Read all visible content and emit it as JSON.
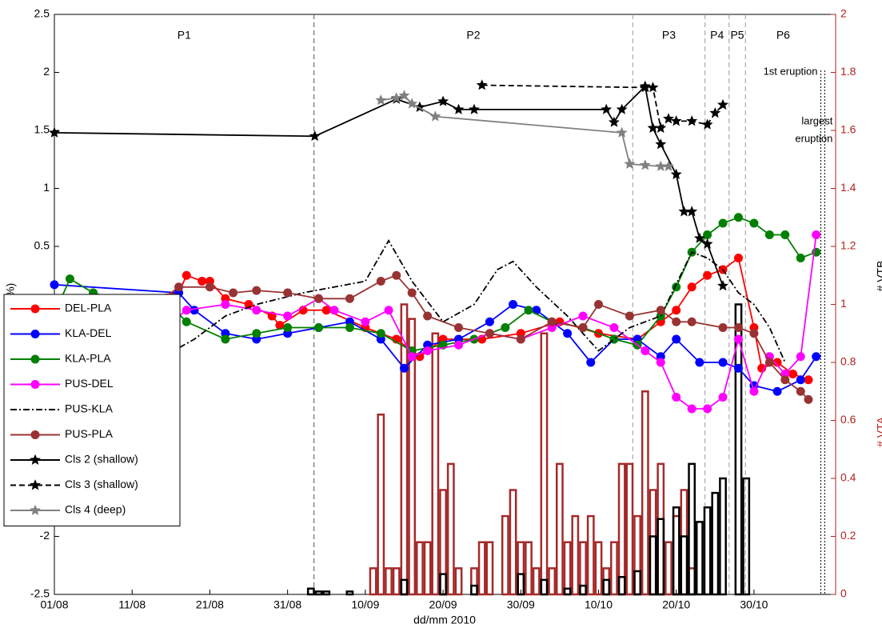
{
  "chart_data": {
    "type": "line",
    "xlabel": "dd/mm     2010",
    "ylabel": "AVV (%)",
    "y2labels": [
      {
        "text": "# VTA",
        "color": "#b22222"
      },
      {
        "text": "# VTB",
        "color": "#000000"
      }
    ],
    "xlim": [
      0,
      100.5
    ],
    "xticks": [
      {
        "value": 0,
        "label": "01/08"
      },
      {
        "value": 10,
        "label": "11/08"
      },
      {
        "value": 20,
        "label": "21/08"
      },
      {
        "value": 30,
        "label": "31/08"
      },
      {
        "value": 40,
        "label": "10/09"
      },
      {
        "value": 50,
        "label": "20/09"
      },
      {
        "value": 60,
        "label": "30/09"
      },
      {
        "value": 70,
        "label": "10/10"
      },
      {
        "value": 80,
        "label": "20/10"
      },
      {
        "value": 90,
        "label": "30/10"
      }
    ],
    "ylim": [
      -2.5,
      2.5
    ],
    "yticks": [
      -2.5,
      -2,
      -1.5,
      -1,
      -0.5,
      0,
      0.5,
      1,
      1.5,
      2,
      2.5
    ],
    "y2lim": [
      0,
      2
    ],
    "y2ticks": [
      0,
      0.2,
      0.4,
      0.6,
      0.8,
      1,
      1.2,
      1.4,
      1.6,
      1.8,
      2
    ],
    "y2color": "#b22222",
    "boundaries": [
      33.4,
      74.4,
      83.7,
      86.8,
      88.9
    ],
    "periods": [
      "P1",
      "P2",
      "P3",
      "P4",
      "P5",
      "P6"
    ],
    "eruptions": [
      {
        "label": [
          "1st eruption"
        ],
        "x": 98.6
      },
      {
        "label": [
          "largest",
          "eruption"
        ],
        "x": 99.1
      }
    ],
    "series": [
      {
        "name": "DEL-PLA",
        "type": "line",
        "color": "#ff0000",
        "marker": "o",
        "dash": "solid",
        "x": [
          0,
          5,
          10,
          16,
          17,
          19,
          20,
          22,
          25,
          28,
          29,
          32,
          35,
          40,
          44,
          47,
          50,
          55,
          60,
          65,
          70,
          75,
          78,
          80,
          82,
          84,
          86,
          88,
          90,
          91,
          93,
          95,
          97
        ],
        "values": [
          -0.07,
          0.07,
          0.05,
          0.1,
          0.25,
          0.2,
          0.2,
          0.05,
          0.0,
          -0.1,
          -0.18,
          -0.05,
          -0.05,
          -0.2,
          -0.3,
          -0.45,
          -0.3,
          -0.3,
          -0.25,
          -0.15,
          -0.25,
          -0.3,
          -0.15,
          -0.05,
          0.15,
          0.25,
          0.3,
          0.4,
          -0.2,
          -0.55,
          -0.5,
          -0.6,
          -0.65
        ]
      },
      {
        "name": "KLA-DEL",
        "type": "line",
        "color": "#0000ff",
        "marker": "o",
        "dash": "solid",
        "x": [
          0,
          16,
          18,
          22,
          26,
          30,
          34,
          38,
          42,
          45,
          48,
          52,
          56,
          59,
          62,
          66,
          69,
          72,
          75,
          78,
          80,
          83,
          86,
          88,
          90,
          93,
          96,
          98
        ],
        "values": [
          0.17,
          0.1,
          -0.05,
          -0.25,
          -0.3,
          -0.25,
          -0.2,
          -0.15,
          -0.3,
          -0.55,
          -0.35,
          -0.3,
          -0.15,
          0.0,
          -0.05,
          -0.25,
          -0.5,
          -0.3,
          -0.3,
          -0.45,
          -0.3,
          -0.5,
          -0.5,
          -0.55,
          -0.7,
          -0.75,
          -0.65,
          -0.45
        ]
      },
      {
        "name": "KLA-PLA",
        "type": "line",
        "color": "#008000",
        "marker": "o",
        "dash": "solid",
        "x": [
          0,
          2,
          5,
          10,
          14,
          17,
          22,
          26,
          30,
          34,
          38,
          42,
          46,
          50,
          54,
          58,
          61,
          64,
          68,
          72,
          75,
          78,
          80,
          82,
          84,
          86,
          88,
          90,
          92,
          94,
          96,
          98
        ],
        "values": [
          -0.08,
          0.22,
          0.1,
          0.0,
          0.05,
          -0.15,
          -0.3,
          -0.25,
          -0.2,
          -0.2,
          -0.2,
          -0.25,
          -0.4,
          -0.35,
          -0.3,
          -0.2,
          -0.05,
          -0.15,
          -0.2,
          -0.3,
          -0.35,
          -0.1,
          0.15,
          0.45,
          0.6,
          0.7,
          0.75,
          0.7,
          0.6,
          0.6,
          0.4,
          0.45
        ]
      },
      {
        "name": "PUS-DEL",
        "type": "line",
        "color": "#ff00ff",
        "marker": "o",
        "dash": "solid",
        "x": [
          0,
          6,
          14,
          17,
          22,
          26,
          30,
          34,
          36,
          40,
          43,
          46,
          48,
          52,
          56,
          60,
          64,
          68,
          72,
          76,
          78,
          80,
          82,
          84,
          86,
          88,
          90,
          92,
          94,
          96,
          98
        ],
        "values": [
          -0.27,
          -0.25,
          -0.2,
          -0.05,
          0.0,
          -0.05,
          -0.1,
          0.05,
          -0.05,
          -0.15,
          -0.05,
          -0.45,
          -0.4,
          -0.35,
          -0.25,
          -0.3,
          -0.2,
          -0.1,
          -0.2,
          -0.4,
          -0.5,
          -0.8,
          -0.9,
          -0.9,
          -0.8,
          -0.3,
          -0.75,
          -0.45,
          -0.6,
          -0.45,
          0.6
        ]
      },
      {
        "name": "PUS-KLA",
        "type": "line",
        "color": "#000000",
        "marker": "none",
        "dash": "dashdot",
        "x": [
          0,
          10,
          14,
          18,
          22,
          26,
          32,
          36,
          40,
          43,
          46,
          50,
          54,
          57,
          59,
          62,
          66,
          70,
          74,
          78,
          82,
          84,
          86,
          88,
          90,
          92,
          94
        ],
        "values": [
          -0.4,
          -0.47,
          -0.45,
          -0.3,
          -0.1,
          0.0,
          0.1,
          0.15,
          0.2,
          0.55,
          0.2,
          -0.15,
          0.0,
          0.3,
          0.37,
          0.15,
          -0.1,
          -0.4,
          -0.2,
          -0.1,
          0.45,
          0.4,
          0.3,
          0.1,
          0.0,
          -0.2,
          -0.5
        ]
      },
      {
        "name": "PUS-PLA",
        "type": "line",
        "color": "#993333",
        "marker": "o",
        "dash": "solid",
        "x": [
          0,
          14,
          16,
          20,
          23,
          26,
          30,
          34,
          38,
          42,
          44,
          46,
          48,
          52,
          56,
          60,
          64,
          68,
          70,
          74,
          78,
          80,
          82,
          86,
          88,
          90,
          92,
          94,
          96,
          97
        ],
        "values": [
          -0.1,
          0.05,
          0.15,
          0.15,
          0.1,
          0.12,
          0.1,
          0.05,
          0.05,
          0.2,
          0.25,
          0.1,
          -0.1,
          -0.2,
          -0.25,
          -0.3,
          -0.15,
          -0.2,
          0.0,
          -0.1,
          -0.05,
          -0.15,
          -0.15,
          -0.2,
          -0.2,
          -0.25,
          -0.5,
          -0.65,
          -0.75,
          -0.82
        ]
      },
      {
        "name": "Cls 2 (shallow)",
        "type": "line",
        "color": "#000000",
        "marker": "*",
        "dash": "solid",
        "x": [
          0,
          33.5,
          44,
          47,
          50,
          52,
          54,
          71,
          72,
          73,
          76,
          77,
          78,
          80,
          81,
          82,
          83,
          84,
          86
        ],
        "values": [
          1.48,
          1.45,
          1.77,
          1.7,
          1.75,
          1.68,
          1.68,
          1.68,
          1.57,
          1.68,
          1.88,
          1.52,
          1.38,
          1.12,
          0.8,
          0.8,
          0.57,
          0.52,
          0.16
        ]
      },
      {
        "name": "Cls 3 (shallow)",
        "type": "line",
        "color": "#000000",
        "marker": "*",
        "dash": "dashed",
        "x": [
          55,
          76,
          77,
          78,
          79,
          80,
          82,
          84,
          85,
          86
        ],
        "values": [
          1.89,
          1.87,
          1.87,
          1.52,
          1.6,
          1.58,
          1.58,
          1.55,
          1.65,
          1.72
        ]
      },
      {
        "name": "Cls 4 (deep)",
        "type": "line",
        "color": "#808080",
        "marker": "*",
        "dash": "solid",
        "x": [
          42,
          44,
          45,
          46,
          49,
          73,
          74,
          76,
          78,
          79
        ],
        "values": [
          1.76,
          1.78,
          1.8,
          1.73,
          1.62,
          1.48,
          1.21,
          1.2,
          1.19,
          1.19
        ]
      },
      {
        "type": "bar",
        "axis": "y2",
        "color": "#a52a2a",
        "x": [
          41,
          42,
          43,
          44,
          45,
          46,
          47,
          48,
          49,
          50,
          51,
          52,
          54,
          55,
          56,
          58,
          59,
          60,
          61,
          62,
          63,
          64,
          65,
          66,
          67,
          68,
          69,
          70,
          71,
          72,
          73,
          74,
          75,
          76,
          77,
          78,
          79,
          80,
          81,
          82
        ],
        "values": [
          0.09,
          0.62,
          0.09,
          0.09,
          1.0,
          0.95,
          0.18,
          0.18,
          0.9,
          0.36,
          0.45,
          0.09,
          0.09,
          0.18,
          0.18,
          0.27,
          0.36,
          0.18,
          0.18,
          0.09,
          0.9,
          0.09,
          0.45,
          0.18,
          0.27,
          0.18,
          0.27,
          0.18,
          0.09,
          0.18,
          0.45,
          0.45,
          0.27,
          0.7,
          0.36,
          0.45,
          0.18,
          0.27,
          0.36,
          0.09
        ]
      },
      {
        "type": "bar",
        "axis": "y2",
        "color": "#000000",
        "x": [
          33,
          34,
          35,
          38,
          45,
          50,
          54,
          60,
          63,
          66,
          68,
          71,
          73,
          75,
          77,
          78,
          80,
          81,
          82,
          83,
          84,
          85,
          86,
          88,
          89
        ],
        "values": [
          0.02,
          0.01,
          0.01,
          0.01,
          0.05,
          0.07,
          0.03,
          0.07,
          0.05,
          0.02,
          0.03,
          0.05,
          0.06,
          0.08,
          0.2,
          0.26,
          0.3,
          0.2,
          0.45,
          0.25,
          0.3,
          0.35,
          0.4,
          1.0,
          0.4
        ]
      }
    ]
  }
}
